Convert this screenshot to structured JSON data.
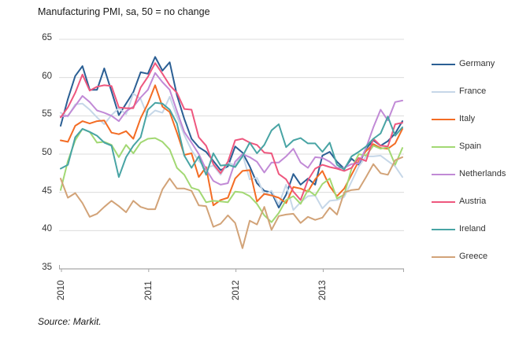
{
  "title": "Manufacturing PMI, sa, 50 = no change",
  "source": "Source: Markit.",
  "colors": {
    "grid": "#DCDCDC",
    "axis": "#A6A6A6",
    "text": "#333333"
  },
  "chart_data": {
    "type": "line",
    "title": "Manufacturing PMI, sa, 50 = no change",
    "xlabel": "",
    "ylabel": "",
    "x_frequency": "monthly",
    "x_start": "2010-01",
    "x_end": "2013-12",
    "x_tick_labels": [
      "2010",
      "2011",
      "2012",
      "2013"
    ],
    "x_tick_month_index": [
      0,
      12,
      24,
      36
    ],
    "ylim": [
      35,
      65
    ],
    "yticks": [
      35,
      40,
      45,
      50,
      55,
      60,
      65
    ],
    "grid": "horizontal",
    "legend_position": "right",
    "series": [
      {
        "name": "Germany",
        "color": "#2B5F94",
        "values": [
          53.7,
          57.2,
          60.2,
          61.5,
          58.4,
          58.4,
          61.2,
          58.2,
          55.1,
          56.6,
          58.1,
          60.7,
          60.5,
          62.7,
          60.9,
          62.0,
          57.7,
          54.6,
          52.0,
          50.9,
          50.3,
          49.1,
          47.9,
          48.4,
          51.0,
          50.2,
          48.4,
          46.2,
          45.2,
          45.0,
          43.0,
          44.7,
          47.4,
          46.0,
          46.8,
          46.0,
          49.8,
          50.3,
          49.0,
          48.1,
          49.4,
          48.6,
          50.7,
          51.8,
          51.1,
          51.7,
          52.7,
          54.3
        ]
      },
      {
        "name": "France",
        "color": "#C6D7E8",
        "values": [
          55.4,
          54.9,
          56.5,
          56.6,
          55.8,
          54.8,
          53.9,
          55.1,
          56.0,
          55.2,
          57.9,
          57.2,
          54.9,
          55.7,
          55.4,
          57.5,
          54.9,
          52.5,
          50.5,
          49.1,
          48.2,
          48.5,
          47.3,
          48.9,
          48.5,
          50.0,
          46.7,
          46.9,
          44.7,
          45.2,
          43.4,
          46.0,
          42.7,
          43.7,
          44.5,
          44.6,
          42.9,
          43.9,
          44.0,
          44.4,
          46.4,
          48.4,
          49.7,
          49.7,
          49.8,
          49.1,
          48.4,
          47.0
        ]
      },
      {
        "name": "Italy",
        "color": "#F36C24",
        "values": [
          51.8,
          51.6,
          53.7,
          54.3,
          54.0,
          54.3,
          54.4,
          52.8,
          52.6,
          53.0,
          52.0,
          54.7,
          56.6,
          59.0,
          56.2,
          55.5,
          52.8,
          49.9,
          50.1,
          47.0,
          48.3,
          43.3,
          44.0,
          44.3,
          46.8,
          47.8,
          47.9,
          43.8,
          44.8,
          44.6,
          44.3,
          43.6,
          45.7,
          45.5,
          45.1,
          46.7,
          47.8,
          45.8,
          44.5,
          45.5,
          47.3,
          49.1,
          50.4,
          51.3,
          50.8,
          50.7,
          51.4,
          53.3
        ]
      },
      {
        "name": "Spain",
        "color": "#A2D873",
        "values": [
          45.3,
          49.1,
          51.8,
          53.3,
          52.9,
          51.5,
          51.6,
          51.2,
          49.6,
          51.2,
          50.1,
          51.5,
          52.0,
          52.1,
          51.6,
          50.6,
          48.2,
          47.3,
          45.6,
          45.3,
          43.7,
          43.9,
          43.8,
          43.7,
          45.1,
          45.0,
          44.5,
          43.5,
          42.0,
          41.1,
          42.3,
          44.0,
          44.5,
          43.5,
          45.3,
          44.6,
          46.1,
          46.8,
          44.2,
          44.7,
          48.1,
          50.0,
          49.8,
          51.1,
          50.7,
          50.9,
          48.6,
          50.8
        ]
      },
      {
        "name": "Netherlands",
        "color": "#C18AD6",
        "values": [
          54.9,
          55.0,
          56.3,
          57.6,
          56.8,
          55.7,
          55.4,
          55.0,
          54.3,
          55.6,
          56.2,
          57.4,
          58.4,
          60.6,
          59.4,
          58.4,
          55.6,
          52.9,
          51.5,
          50.0,
          48.0,
          46.5,
          46.0,
          46.2,
          49.0,
          50.0,
          49.6,
          49.0,
          47.6,
          48.9,
          48.9,
          49.7,
          50.7,
          48.9,
          48.2,
          49.6,
          49.5,
          49.0,
          48.2,
          48.2,
          48.7,
          48.8,
          50.8,
          53.5,
          55.8,
          54.4,
          56.8,
          57.0
        ]
      },
      {
        "name": "Austria",
        "color": "#EE577E",
        "values": [
          54.8,
          56.1,
          58.0,
          60.4,
          58.3,
          58.8,
          59.0,
          58.9,
          56.1,
          56.0,
          56.0,
          58.7,
          60.1,
          61.9,
          60.5,
          59.0,
          58.0,
          55.9,
          55.8,
          52.2,
          51.1,
          48.7,
          47.5,
          49.0,
          51.8,
          52.0,
          51.5,
          51.2,
          50.2,
          50.1,
          47.4,
          46.7,
          45.1,
          44.0,
          46.6,
          48.1,
          48.6,
          48.3,
          48.1,
          47.8,
          48.2,
          49.5,
          49.1,
          52.0,
          51.1,
          51.0,
          53.9,
          54.1
        ]
      },
      {
        "name": "Ireland",
        "color": "#48A4A4",
        "values": [
          48.1,
          48.6,
          52.2,
          53.3,
          52.9,
          52.4,
          51.5,
          51.1,
          47.0,
          49.6,
          51.1,
          52.2,
          55.8,
          56.7,
          56.6,
          55.8,
          54.0,
          49.8,
          48.2,
          49.7,
          47.3,
          50.1,
          48.5,
          48.6,
          48.3,
          49.7,
          51.5,
          50.1,
          51.2,
          53.1,
          53.9,
          50.9,
          51.8,
          52.1,
          51.4,
          51.4,
          50.3,
          51.5,
          48.6,
          48.0,
          49.7,
          50.3,
          51.0,
          52.0,
          52.7,
          54.9,
          52.4,
          53.5
        ]
      },
      {
        "name": "Greece",
        "color": "#D2A378",
        "values": [
          46.8,
          44.3,
          44.9,
          43.6,
          41.8,
          42.2,
          43.1,
          43.9,
          43.2,
          42.4,
          43.9,
          43.1,
          42.8,
          42.8,
          45.4,
          46.8,
          45.5,
          45.5,
          45.2,
          43.3,
          43.2,
          40.5,
          40.9,
          42.0,
          41.0,
          37.7,
          41.3,
          40.8,
          43.1,
          40.1,
          41.9,
          42.1,
          42.2,
          41.0,
          41.8,
          41.4,
          41.7,
          43.0,
          42.1,
          45.0,
          45.3,
          45.4,
          47.0,
          48.7,
          47.5,
          47.3,
          49.2,
          49.6
        ]
      }
    ]
  }
}
